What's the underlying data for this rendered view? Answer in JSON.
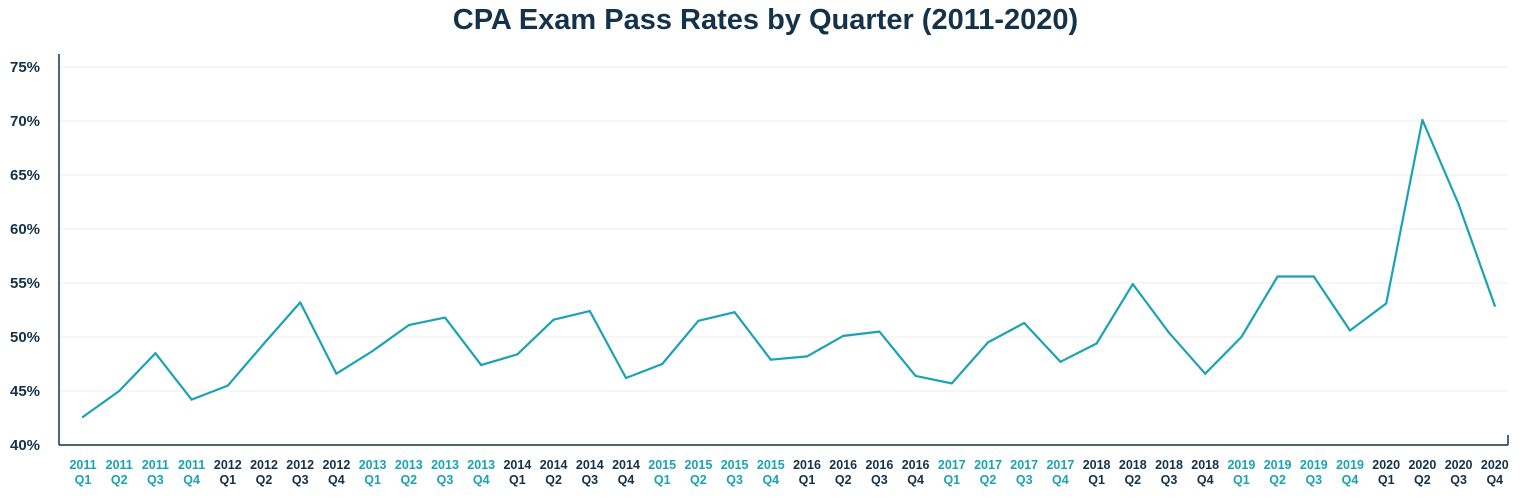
{
  "chart_data": {
    "type": "line",
    "title": "CPA Exam Pass Rates by Quarter (2011-2020)",
    "xlabel": "",
    "ylabel": "",
    "ylim": [
      40,
      75
    ],
    "yticks": [
      "40%",
      "45%",
      "50%",
      "55%",
      "60%",
      "65%",
      "70%",
      "75%"
    ],
    "ytick_values": [
      40,
      45,
      50,
      55,
      60,
      65,
      70,
      75
    ],
    "grid": true,
    "legend": "none",
    "colors": {
      "line": "#1aa3b3",
      "text_dark": "#14324a",
      "text_accent": "#1aa3b3",
      "grid": "#eeeeee"
    },
    "categories": [
      {
        "year": "2011",
        "quarter": "Q1",
        "accent": true
      },
      {
        "year": "2011",
        "quarter": "Q2",
        "accent": true
      },
      {
        "year": "2011",
        "quarter": "Q3",
        "accent": true
      },
      {
        "year": "2011",
        "quarter": "Q4",
        "accent": true
      },
      {
        "year": "2012",
        "quarter": "Q1",
        "accent": false
      },
      {
        "year": "2012",
        "quarter": "Q2",
        "accent": false
      },
      {
        "year": "2012",
        "quarter": "Q3",
        "accent": false
      },
      {
        "year": "2012",
        "quarter": "Q4",
        "accent": false
      },
      {
        "year": "2013",
        "quarter": "Q1",
        "accent": true
      },
      {
        "year": "2013",
        "quarter": "Q2",
        "accent": true
      },
      {
        "year": "2013",
        "quarter": "Q3",
        "accent": true
      },
      {
        "year": "2013",
        "quarter": "Q4",
        "accent": true
      },
      {
        "year": "2014",
        "quarter": "Q1",
        "accent": false
      },
      {
        "year": "2014",
        "quarter": "Q2",
        "accent": false
      },
      {
        "year": "2014",
        "quarter": "Q3",
        "accent": false
      },
      {
        "year": "2014",
        "quarter": "Q4",
        "accent": false
      },
      {
        "year": "2015",
        "quarter": "Q1",
        "accent": true
      },
      {
        "year": "2015",
        "quarter": "Q2",
        "accent": true
      },
      {
        "year": "2015",
        "quarter": "Q3",
        "accent": true
      },
      {
        "year": "2015",
        "quarter": "Q4",
        "accent": true
      },
      {
        "year": "2016",
        "quarter": "Q1",
        "accent": false
      },
      {
        "year": "2016",
        "quarter": "Q2",
        "accent": false
      },
      {
        "year": "2016",
        "quarter": "Q3",
        "accent": false
      },
      {
        "year": "2016",
        "quarter": "Q4",
        "accent": false
      },
      {
        "year": "2017",
        "quarter": "Q1",
        "accent": true
      },
      {
        "year": "2017",
        "quarter": "Q2",
        "accent": true
      },
      {
        "year": "2017",
        "quarter": "Q3",
        "accent": true
      },
      {
        "year": "2017",
        "quarter": "Q4",
        "accent": true
      },
      {
        "year": "2018",
        "quarter": "Q1",
        "accent": false
      },
      {
        "year": "2018",
        "quarter": "Q2",
        "accent": false
      },
      {
        "year": "2018",
        "quarter": "Q3",
        "accent": false
      },
      {
        "year": "2018",
        "quarter": "Q4",
        "accent": false
      },
      {
        "year": "2019",
        "quarter": "Q1",
        "accent": true
      },
      {
        "year": "2019",
        "quarter": "Q2",
        "accent": true
      },
      {
        "year": "2019",
        "quarter": "Q3",
        "accent": true
      },
      {
        "year": "2019",
        "quarter": "Q4",
        "accent": true
      },
      {
        "year": "2020",
        "quarter": "Q1",
        "accent": false
      },
      {
        "year": "2020",
        "quarter": "Q2",
        "accent": false
      },
      {
        "year": "2020",
        "quarter": "Q3",
        "accent": false
      },
      {
        "year": "2020",
        "quarter": "Q4",
        "accent": false
      }
    ],
    "series": [
      {
        "values": [
          42.6,
          45.0,
          48.5,
          44.2,
          45.5,
          49.4,
          53.2,
          46.6,
          48.7,
          51.1,
          51.8,
          47.4,
          48.4,
          51.6,
          52.4,
          46.2,
          47.5,
          51.5,
          52.3,
          47.9,
          48.2,
          50.1,
          50.5,
          46.4,
          45.7,
          49.5,
          51.3,
          47.7,
          49.4,
          54.9,
          50.4,
          46.6,
          50.0,
          55.6,
          55.6,
          50.6,
          53.1,
          70.1,
          62.3,
          52.9
        ]
      }
    ]
  }
}
